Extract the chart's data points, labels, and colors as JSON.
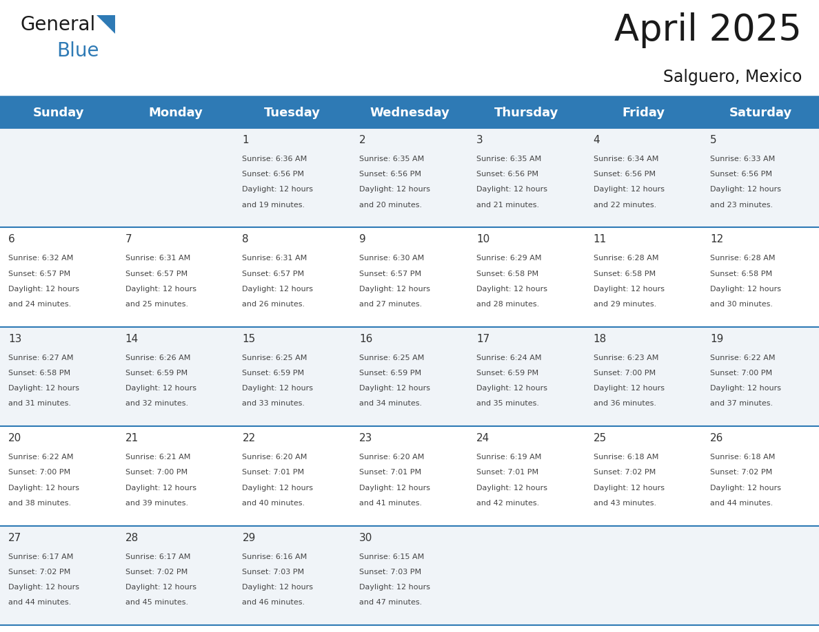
{
  "title": "April 2025",
  "subtitle": "Salguero, Mexico",
  "header_bg": "#2e7ab5",
  "header_text": "#ffffff",
  "row_bg_light": "#f0f4f8",
  "row_bg_white": "#ffffff",
  "day_names": [
    "Sunday",
    "Monday",
    "Tuesday",
    "Wednesday",
    "Thursday",
    "Friday",
    "Saturday"
  ],
  "weeks": [
    [
      {
        "day": "",
        "sunrise": "",
        "sunset": "",
        "daylight": ""
      },
      {
        "day": "",
        "sunrise": "",
        "sunset": "",
        "daylight": ""
      },
      {
        "day": "1",
        "sunrise": "Sunrise: 6:36 AM",
        "sunset": "Sunset: 6:56 PM",
        "daylight": "Daylight: 12 hours\nand 19 minutes."
      },
      {
        "day": "2",
        "sunrise": "Sunrise: 6:35 AM",
        "sunset": "Sunset: 6:56 PM",
        "daylight": "Daylight: 12 hours\nand 20 minutes."
      },
      {
        "day": "3",
        "sunrise": "Sunrise: 6:35 AM",
        "sunset": "Sunset: 6:56 PM",
        "daylight": "Daylight: 12 hours\nand 21 minutes."
      },
      {
        "day": "4",
        "sunrise": "Sunrise: 6:34 AM",
        "sunset": "Sunset: 6:56 PM",
        "daylight": "Daylight: 12 hours\nand 22 minutes."
      },
      {
        "day": "5",
        "sunrise": "Sunrise: 6:33 AM",
        "sunset": "Sunset: 6:56 PM",
        "daylight": "Daylight: 12 hours\nand 23 minutes."
      }
    ],
    [
      {
        "day": "6",
        "sunrise": "Sunrise: 6:32 AM",
        "sunset": "Sunset: 6:57 PM",
        "daylight": "Daylight: 12 hours\nand 24 minutes."
      },
      {
        "day": "7",
        "sunrise": "Sunrise: 6:31 AM",
        "sunset": "Sunset: 6:57 PM",
        "daylight": "Daylight: 12 hours\nand 25 minutes."
      },
      {
        "day": "8",
        "sunrise": "Sunrise: 6:31 AM",
        "sunset": "Sunset: 6:57 PM",
        "daylight": "Daylight: 12 hours\nand 26 minutes."
      },
      {
        "day": "9",
        "sunrise": "Sunrise: 6:30 AM",
        "sunset": "Sunset: 6:57 PM",
        "daylight": "Daylight: 12 hours\nand 27 minutes."
      },
      {
        "day": "10",
        "sunrise": "Sunrise: 6:29 AM",
        "sunset": "Sunset: 6:58 PM",
        "daylight": "Daylight: 12 hours\nand 28 minutes."
      },
      {
        "day": "11",
        "sunrise": "Sunrise: 6:28 AM",
        "sunset": "Sunset: 6:58 PM",
        "daylight": "Daylight: 12 hours\nand 29 minutes."
      },
      {
        "day": "12",
        "sunrise": "Sunrise: 6:28 AM",
        "sunset": "Sunset: 6:58 PM",
        "daylight": "Daylight: 12 hours\nand 30 minutes."
      }
    ],
    [
      {
        "day": "13",
        "sunrise": "Sunrise: 6:27 AM",
        "sunset": "Sunset: 6:58 PM",
        "daylight": "Daylight: 12 hours\nand 31 minutes."
      },
      {
        "day": "14",
        "sunrise": "Sunrise: 6:26 AM",
        "sunset": "Sunset: 6:59 PM",
        "daylight": "Daylight: 12 hours\nand 32 minutes."
      },
      {
        "day": "15",
        "sunrise": "Sunrise: 6:25 AM",
        "sunset": "Sunset: 6:59 PM",
        "daylight": "Daylight: 12 hours\nand 33 minutes."
      },
      {
        "day": "16",
        "sunrise": "Sunrise: 6:25 AM",
        "sunset": "Sunset: 6:59 PM",
        "daylight": "Daylight: 12 hours\nand 34 minutes."
      },
      {
        "day": "17",
        "sunrise": "Sunrise: 6:24 AM",
        "sunset": "Sunset: 6:59 PM",
        "daylight": "Daylight: 12 hours\nand 35 minutes."
      },
      {
        "day": "18",
        "sunrise": "Sunrise: 6:23 AM",
        "sunset": "Sunset: 7:00 PM",
        "daylight": "Daylight: 12 hours\nand 36 minutes."
      },
      {
        "day": "19",
        "sunrise": "Sunrise: 6:22 AM",
        "sunset": "Sunset: 7:00 PM",
        "daylight": "Daylight: 12 hours\nand 37 minutes."
      }
    ],
    [
      {
        "day": "20",
        "sunrise": "Sunrise: 6:22 AM",
        "sunset": "Sunset: 7:00 PM",
        "daylight": "Daylight: 12 hours\nand 38 minutes."
      },
      {
        "day": "21",
        "sunrise": "Sunrise: 6:21 AM",
        "sunset": "Sunset: 7:00 PM",
        "daylight": "Daylight: 12 hours\nand 39 minutes."
      },
      {
        "day": "22",
        "sunrise": "Sunrise: 6:20 AM",
        "sunset": "Sunset: 7:01 PM",
        "daylight": "Daylight: 12 hours\nand 40 minutes."
      },
      {
        "day": "23",
        "sunrise": "Sunrise: 6:20 AM",
        "sunset": "Sunset: 7:01 PM",
        "daylight": "Daylight: 12 hours\nand 41 minutes."
      },
      {
        "day": "24",
        "sunrise": "Sunrise: 6:19 AM",
        "sunset": "Sunset: 7:01 PM",
        "daylight": "Daylight: 12 hours\nand 42 minutes."
      },
      {
        "day": "25",
        "sunrise": "Sunrise: 6:18 AM",
        "sunset": "Sunset: 7:02 PM",
        "daylight": "Daylight: 12 hours\nand 43 minutes."
      },
      {
        "day": "26",
        "sunrise": "Sunrise: 6:18 AM",
        "sunset": "Sunset: 7:02 PM",
        "daylight": "Daylight: 12 hours\nand 44 minutes."
      }
    ],
    [
      {
        "day": "27",
        "sunrise": "Sunrise: 6:17 AM",
        "sunset": "Sunset: 7:02 PM",
        "daylight": "Daylight: 12 hours\nand 44 minutes."
      },
      {
        "day": "28",
        "sunrise": "Sunrise: 6:17 AM",
        "sunset": "Sunset: 7:02 PM",
        "daylight": "Daylight: 12 hours\nand 45 minutes."
      },
      {
        "day": "29",
        "sunrise": "Sunrise: 6:16 AM",
        "sunset": "Sunset: 7:03 PM",
        "daylight": "Daylight: 12 hours\nand 46 minutes."
      },
      {
        "day": "30",
        "sunrise": "Sunrise: 6:15 AM",
        "sunset": "Sunset: 7:03 PM",
        "daylight": "Daylight: 12 hours\nand 47 minutes."
      },
      {
        "day": "",
        "sunrise": "",
        "sunset": "",
        "daylight": ""
      },
      {
        "day": "",
        "sunrise": "",
        "sunset": "",
        "daylight": ""
      },
      {
        "day": "",
        "sunrise": "",
        "sunset": "",
        "daylight": ""
      }
    ]
  ],
  "header_divider_color": "#2e7ab5",
  "cell_border_color": "#2e7ab5",
  "text_color": "#444444",
  "day_num_color": "#333333",
  "cell_text_size": 8.0,
  "day_num_size": 11,
  "header_text_size": 13,
  "title_fontsize": 38,
  "subtitle_fontsize": 17,
  "logo_general_size": 20,
  "logo_blue_size": 20
}
